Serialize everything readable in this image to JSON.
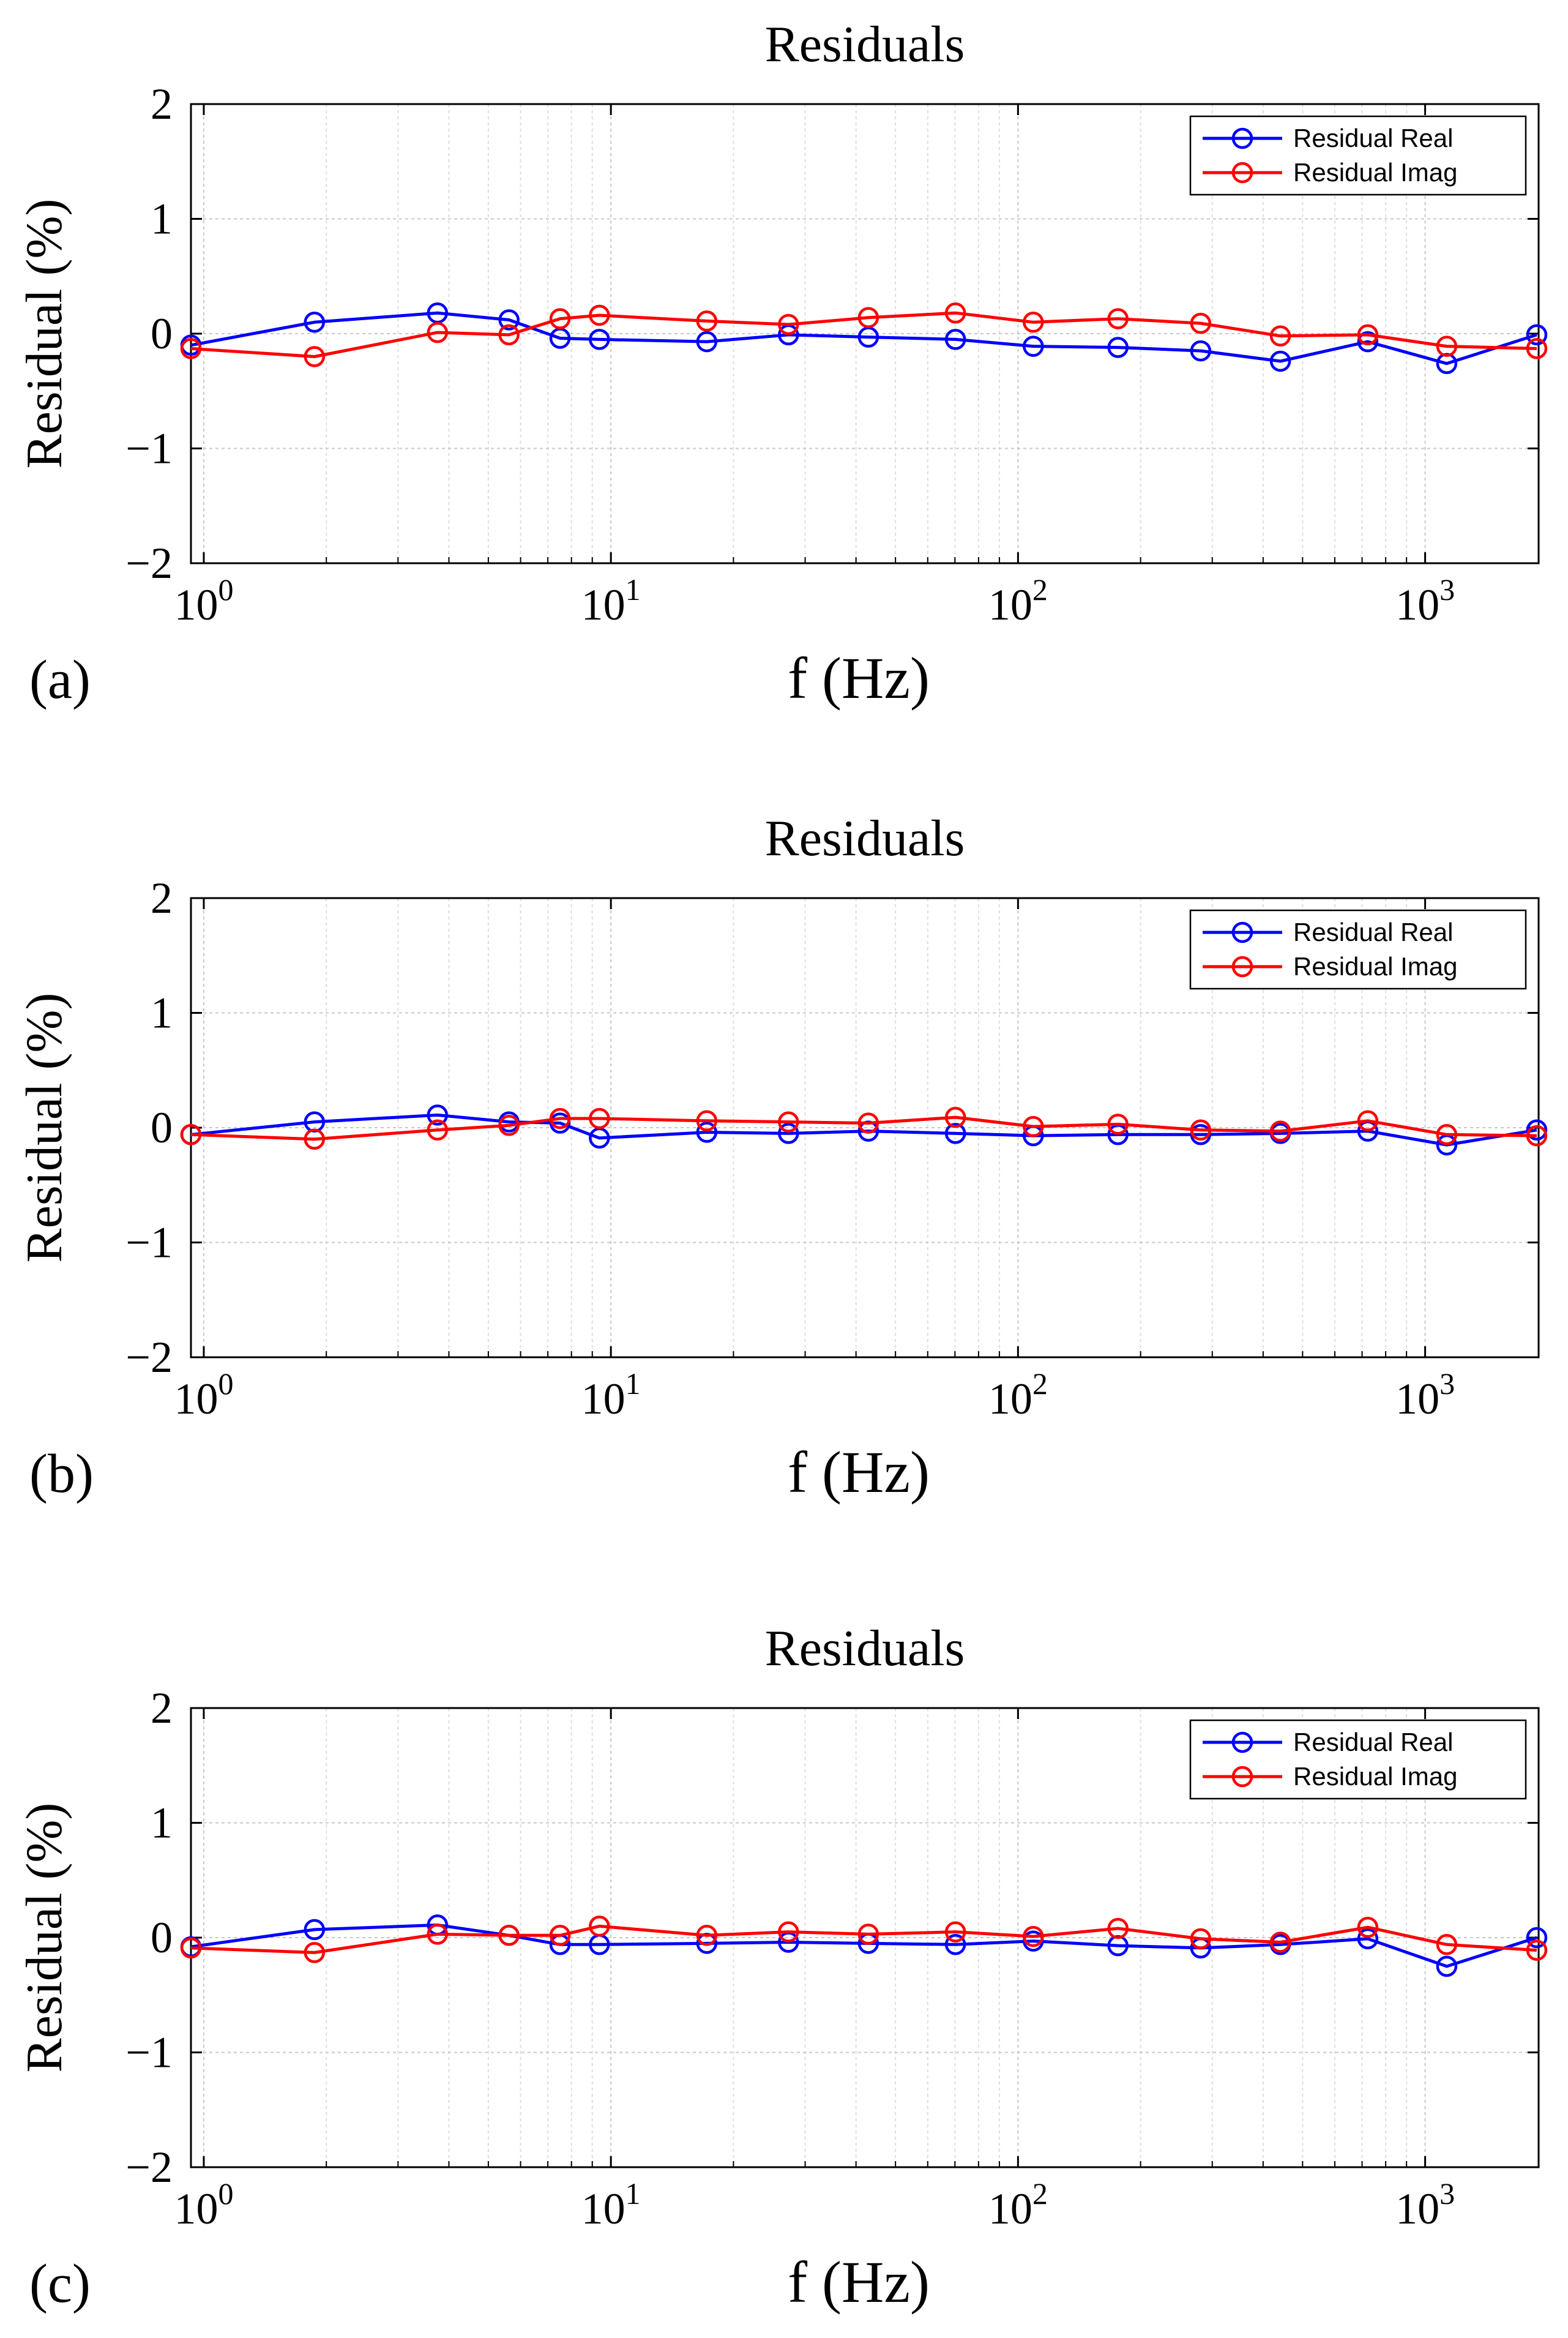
{
  "chart_data": [
    {
      "type": "line",
      "panel_label": "(a)",
      "title": "Residuals",
      "xlabel": "f (Hz)",
      "ylabel": "Residual  (%)",
      "xscale": "log",
      "xlim": [
        0.93,
        1900
      ],
      "ylim": [
        -2,
        2
      ],
      "yticks": [
        {
          "value": 2,
          "label": "2"
        },
        {
          "value": 1,
          "label": "1"
        },
        {
          "value": 0,
          "label": "0"
        },
        {
          "value": -1,
          "label": "−1"
        },
        {
          "value": -2,
          "label": "−2"
        }
      ],
      "xticks": [
        {
          "value": 1,
          "base": "10",
          "exp": "0"
        },
        {
          "value": 10,
          "base": "10",
          "exp": "1"
        },
        {
          "value": 100,
          "base": "10",
          "exp": "2"
        },
        {
          "value": 1000,
          "base": "10",
          "exp": "3"
        }
      ],
      "grid": true,
      "legend_position": "top-right",
      "x": [
        0.93,
        1.87,
        3.75,
        5.62,
        7.5,
        9.37,
        17.2,
        27.3,
        42.9,
        70.2,
        109,
        176,
        281,
        441,
        723,
        1130,
        1880
      ],
      "series": [
        {
          "name": "Residual Real",
          "color": "#0000ff",
          "values": [
            -0.1,
            0.1,
            0.18,
            0.12,
            -0.04,
            -0.05,
            -0.07,
            -0.01,
            -0.03,
            -0.05,
            -0.11,
            -0.12,
            -0.15,
            -0.24,
            -0.07,
            -0.26,
            -0.01
          ]
        },
        {
          "name": "Residual Imag",
          "color": "#ff0000",
          "values": [
            -0.13,
            -0.2,
            0.01,
            -0.01,
            0.13,
            0.16,
            0.11,
            0.08,
            0.14,
            0.18,
            0.1,
            0.13,
            0.09,
            -0.02,
            -0.01,
            -0.11,
            -0.13
          ]
        }
      ]
    },
    {
      "type": "line",
      "panel_label": "(b)",
      "title": "Residuals",
      "xlabel": "f (Hz)",
      "ylabel": "Residual  (%)",
      "xscale": "log",
      "xlim": [
        0.93,
        1900
      ],
      "ylim": [
        -2,
        2
      ],
      "yticks": [
        {
          "value": 2,
          "label": "2"
        },
        {
          "value": 1,
          "label": "1"
        },
        {
          "value": 0,
          "label": "0"
        },
        {
          "value": -1,
          "label": "−1"
        },
        {
          "value": -2,
          "label": "−2"
        }
      ],
      "xticks": [
        {
          "value": 1,
          "base": "10",
          "exp": "0"
        },
        {
          "value": 10,
          "base": "10",
          "exp": "1"
        },
        {
          "value": 100,
          "base": "10",
          "exp": "2"
        },
        {
          "value": 1000,
          "base": "10",
          "exp": "3"
        }
      ],
      "grid": true,
      "legend_position": "top-right",
      "x": [
        0.93,
        1.87,
        3.75,
        5.62,
        7.5,
        9.37,
        17.2,
        27.3,
        42.9,
        70.2,
        109,
        176,
        281,
        441,
        723,
        1130,
        1880
      ],
      "series": [
        {
          "name": "Residual Real",
          "color": "#0000ff",
          "values": [
            -0.06,
            0.05,
            0.11,
            0.05,
            0.04,
            -0.09,
            -0.04,
            -0.05,
            -0.03,
            -0.05,
            -0.07,
            -0.06,
            -0.06,
            -0.05,
            -0.03,
            -0.15,
            -0.02
          ]
        },
        {
          "name": "Residual Imag",
          "color": "#ff0000",
          "values": [
            -0.06,
            -0.1,
            -0.02,
            0.02,
            0.08,
            0.08,
            0.06,
            0.05,
            0.04,
            0.09,
            0.01,
            0.03,
            -0.02,
            -0.03,
            0.06,
            -0.06,
            -0.07
          ]
        }
      ]
    },
    {
      "type": "line",
      "panel_label": "(c)",
      "title": "Residuals",
      "xlabel": "f (Hz)",
      "ylabel": "Residual  (%)",
      "xscale": "log",
      "xlim": [
        0.93,
        1900
      ],
      "ylim": [
        -2,
        2
      ],
      "yticks": [
        {
          "value": 2,
          "label": "2"
        },
        {
          "value": 1,
          "label": "1"
        },
        {
          "value": 0,
          "label": "0"
        },
        {
          "value": -1,
          "label": "−1"
        },
        {
          "value": -2,
          "label": "−2"
        }
      ],
      "xticks": [
        {
          "value": 1,
          "base": "10",
          "exp": "0"
        },
        {
          "value": 10,
          "base": "10",
          "exp": "1"
        },
        {
          "value": 100,
          "base": "10",
          "exp": "2"
        },
        {
          "value": 1000,
          "base": "10",
          "exp": "3"
        }
      ],
      "grid": true,
      "legend_position": "top-right",
      "x": [
        0.93,
        1.87,
        3.75,
        5.62,
        7.5,
        9.37,
        17.2,
        27.3,
        42.9,
        70.2,
        109,
        176,
        281,
        441,
        723,
        1130,
        1880
      ],
      "series": [
        {
          "name": "Residual Real",
          "color": "#0000ff",
          "values": [
            -0.08,
            0.07,
            0.11,
            0.02,
            -0.06,
            -0.06,
            -0.05,
            -0.04,
            -0.05,
            -0.06,
            -0.03,
            -0.07,
            -0.09,
            -0.06,
            -0.01,
            -0.25,
            0.0
          ]
        },
        {
          "name": "Residual Imag",
          "color": "#ff0000",
          "values": [
            -0.09,
            -0.13,
            0.03,
            0.02,
            0.02,
            0.1,
            0.02,
            0.05,
            0.03,
            0.05,
            0.01,
            0.08,
            -0.01,
            -0.04,
            0.09,
            -0.06,
            -0.11
          ]
        }
      ]
    }
  ]
}
